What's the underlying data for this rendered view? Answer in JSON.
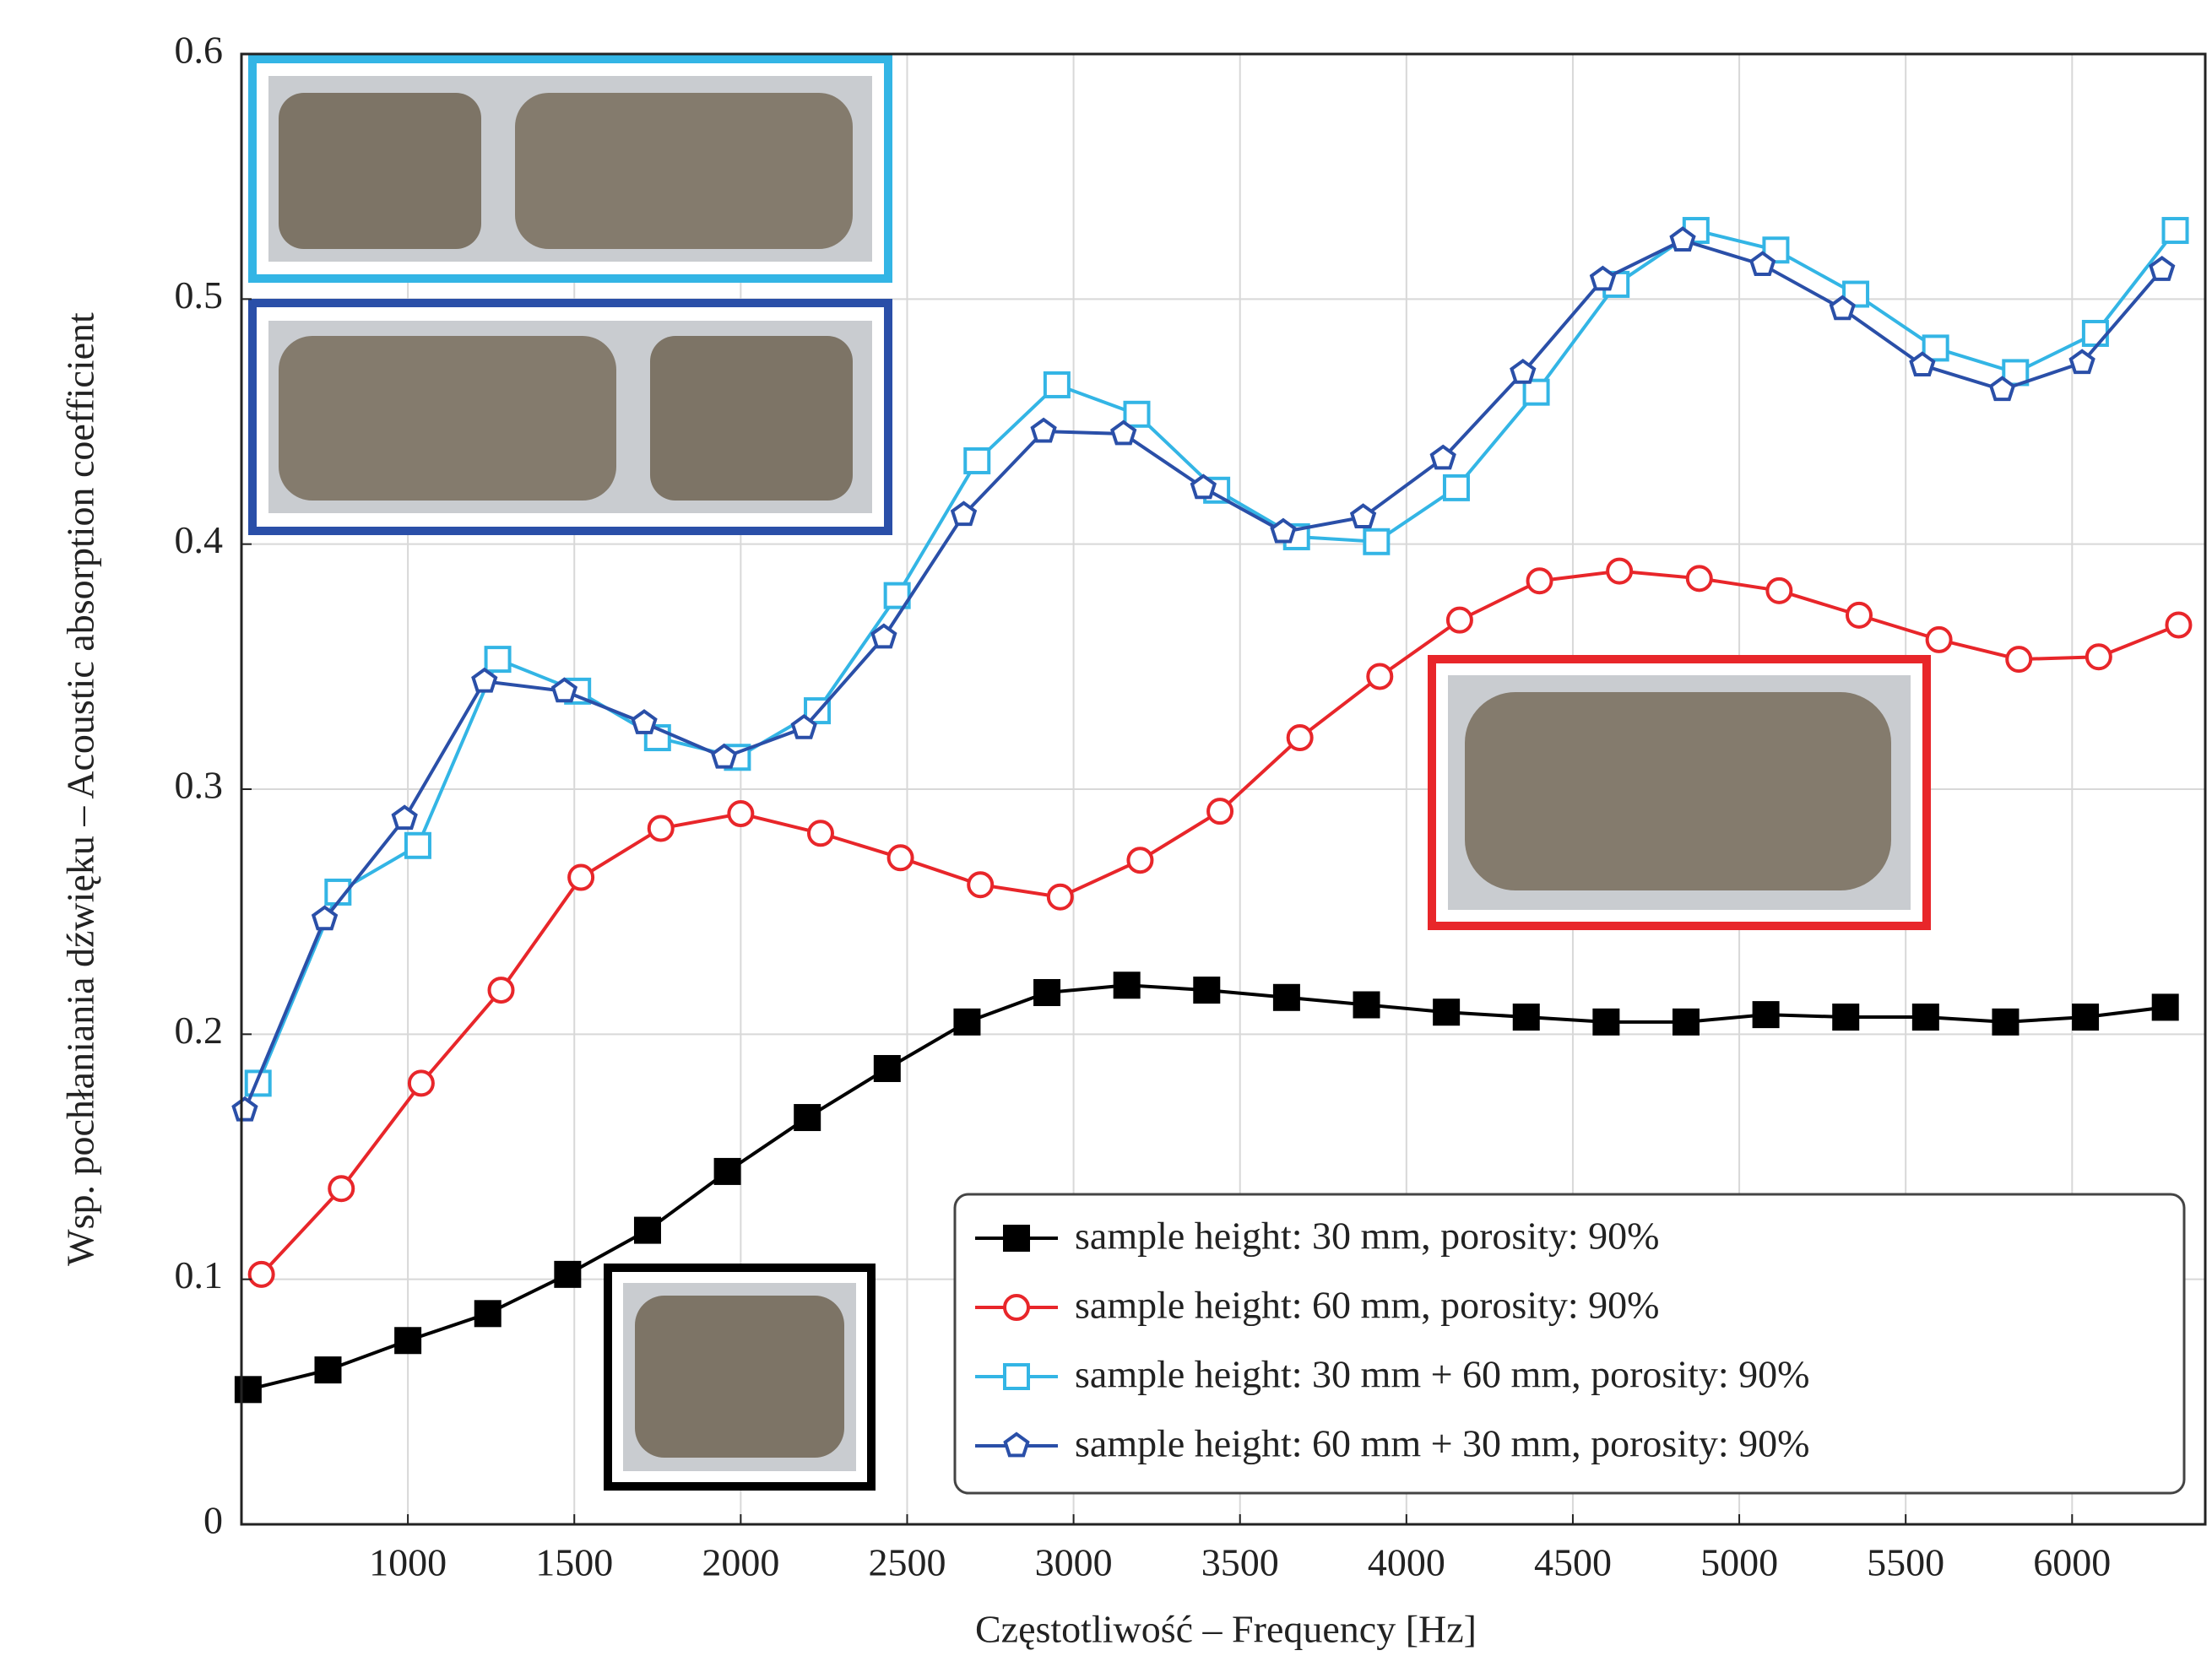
{
  "chart_data": {
    "type": "line",
    "x_label": "Częstotliwość – Frequency [Hz]",
    "y_label": "Wsp. pochłaniania dźwięku – Acoustic absorption coefficient",
    "xlim": [
      500,
      6400
    ],
    "xticks": [
      1000,
      1500,
      2000,
      2500,
      3000,
      3500,
      4000,
      4500,
      5000,
      5500,
      6000
    ],
    "ylim": [
      0,
      0.6
    ],
    "yticks": [
      0,
      0.1,
      0.2,
      0.3,
      0.4,
      0.5,
      0.6
    ],
    "grid": true,
    "legend": "lower right",
    "series": [
      {
        "name": "sample height: 30 mm, porosity: 90%",
        "color": "#000000",
        "marker": "square-filled",
        "x": [
          520,
          760,
          1000,
          1240,
          1480,
          1720,
          1960,
          2200,
          2440,
          2680,
          2920,
          3160,
          3400,
          3640,
          3880,
          4120,
          4360,
          4600,
          4840,
          5080,
          5320,
          5560,
          5800,
          6040,
          6280
        ],
        "values": [
          0.055,
          0.063,
          0.075,
          0.086,
          0.102,
          0.12,
          0.144,
          0.166,
          0.186,
          0.205,
          0.217,
          0.22,
          0.218,
          0.215,
          0.212,
          0.209,
          0.207,
          0.205,
          0.205,
          0.208,
          0.207,
          0.207,
          0.205,
          0.207,
          0.211
        ]
      },
      {
        "name": "sample height: 60 mm, porosity: 90%",
        "color": "#e8262a",
        "marker": "circle",
        "x": [
          560,
          800,
          1040,
          1280,
          1520,
          1760,
          2000,
          2240,
          2480,
          2720,
          2960,
          3200,
          3440,
          3680,
          3920,
          4160,
          4400,
          4640,
          4880,
          5120,
          5360,
          5600,
          5840,
          6080,
          6320
        ],
        "values": [
          0.102,
          0.137,
          0.18,
          0.218,
          0.264,
          0.284,
          0.29,
          0.282,
          0.272,
          0.261,
          0.256,
          0.271,
          0.291,
          0.321,
          0.346,
          0.369,
          0.385,
          0.389,
          0.386,
          0.381,
          0.371,
          0.361,
          0.353,
          0.354,
          0.367
        ]
      },
      {
        "name": "sample height: 30 mm + 60 mm, porosity: 90%",
        "color": "#33b5e5",
        "marker": "square",
        "x": [
          550,
          790,
          1030,
          1270,
          1510,
          1750,
          1990,
          2230,
          2470,
          2710,
          2950,
          3190,
          3430,
          3670,
          3910,
          4150,
          4390,
          4630,
          4870,
          5110,
          5350,
          5590,
          5830,
          6070,
          6310
        ],
        "values": [
          0.18,
          0.258,
          0.277,
          0.353,
          0.34,
          0.321,
          0.313,
          0.332,
          0.379,
          0.434,
          0.465,
          0.453,
          0.422,
          0.403,
          0.401,
          0.423,
          0.462,
          0.506,
          0.528,
          0.52,
          0.502,
          0.48,
          0.47,
          0.486,
          0.528
        ]
      },
      {
        "name": "sample height: 60 mm + 30 mm, porosity: 90%",
        "color": "#2a4fa8",
        "marker": "pentagon",
        "x": [
          510,
          750,
          990,
          1230,
          1470,
          1710,
          1950,
          2190,
          2430,
          2670,
          2910,
          3150,
          3390,
          3630,
          3870,
          4110,
          4350,
          4590,
          4830,
          5070,
          5310,
          5550,
          5790,
          6030,
          6270
        ],
        "values": [
          0.169,
          0.247,
          0.288,
          0.344,
          0.34,
          0.327,
          0.313,
          0.325,
          0.362,
          0.412,
          0.446,
          0.445,
          0.423,
          0.405,
          0.411,
          0.435,
          0.47,
          0.508,
          0.524,
          0.514,
          0.496,
          0.473,
          0.463,
          0.474,
          0.512
        ]
      }
    ]
  }
}
